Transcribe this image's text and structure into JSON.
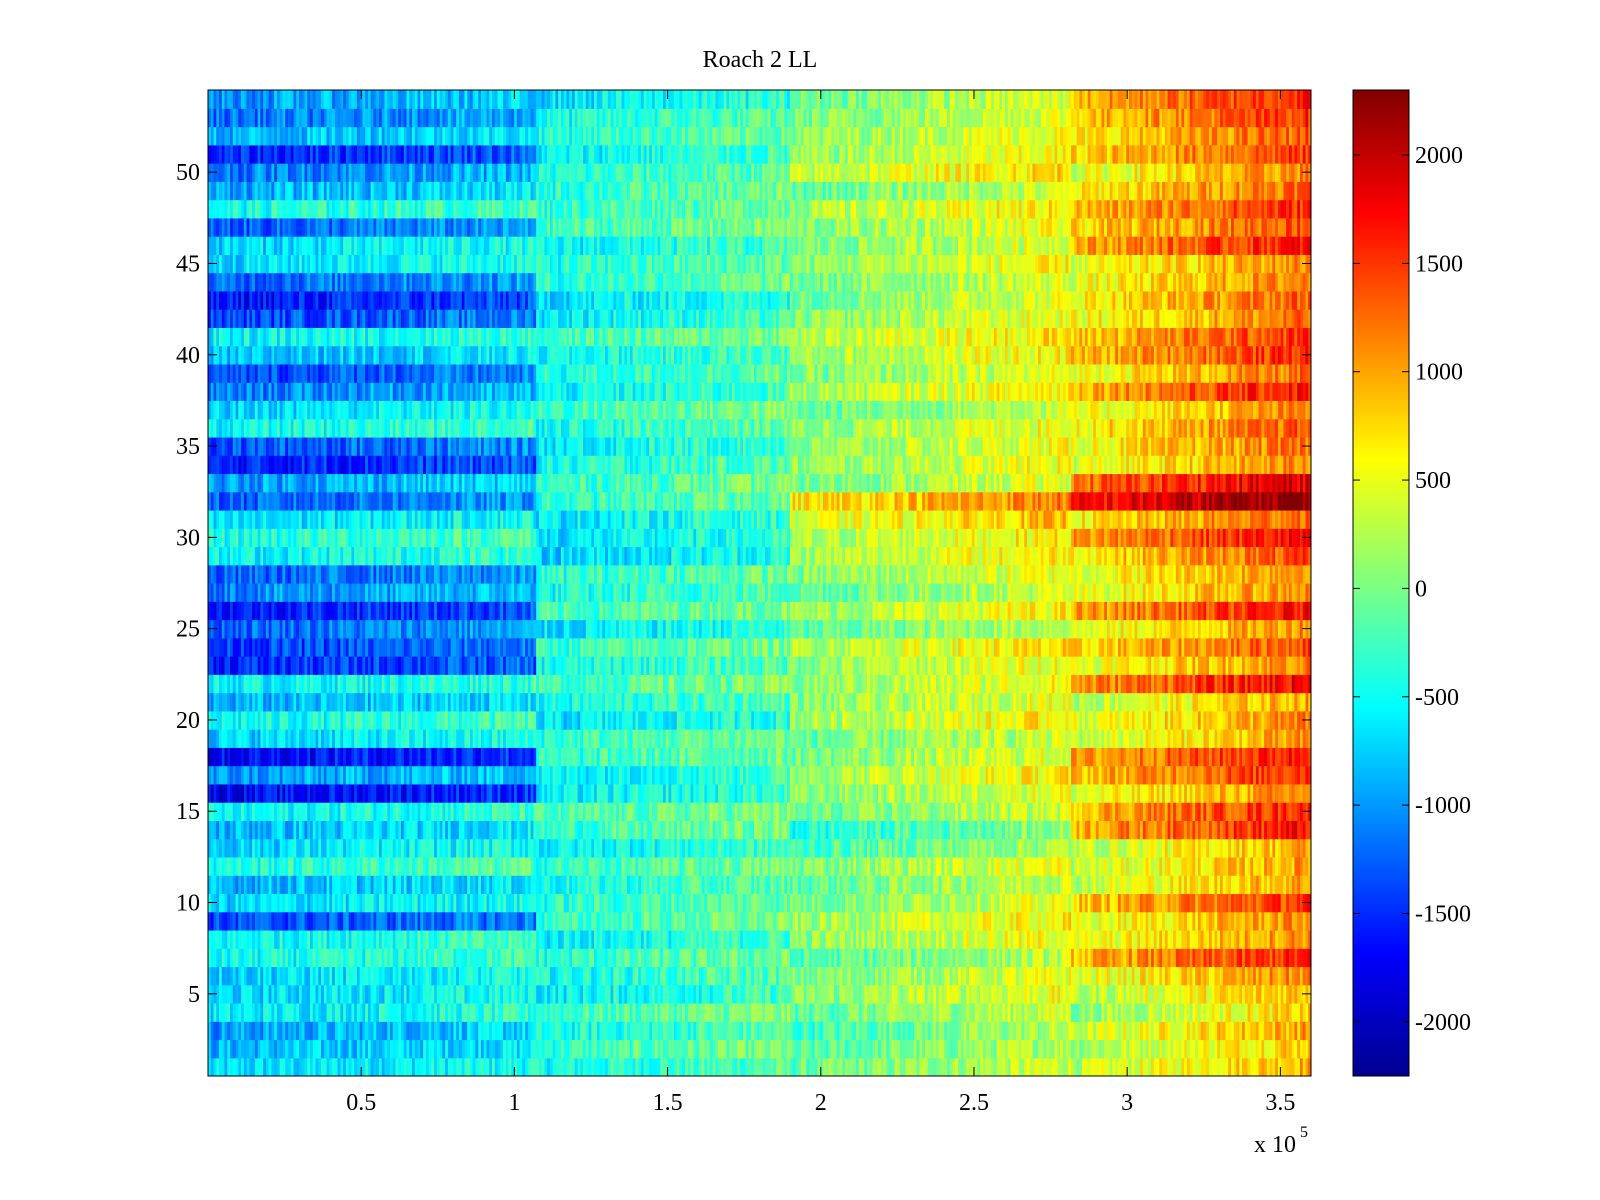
{
  "chart_data": {
    "type": "heatmap",
    "title": "Roach 2 LL",
    "xlabel": "",
    "ylabel": "",
    "x_exponent_label": "x 10",
    "x_exponent_power": "5",
    "xlim": [
      0,
      3.6
    ],
    "ylim": [
      0.5,
      54.5
    ],
    "rows": 54,
    "x_ticks": [
      0.5,
      1,
      1.5,
      2,
      2.5,
      3,
      3.5
    ],
    "x_tick_labels": [
      "0.5",
      "1",
      "1.5",
      "2",
      "2.5",
      "3",
      "3.5"
    ],
    "y_ticks": [
      5,
      10,
      15,
      20,
      25,
      30,
      35,
      40,
      45,
      50
    ],
    "y_tick_labels": [
      "5",
      "10",
      "15",
      "20",
      "25",
      "30",
      "35",
      "40",
      "45",
      "50"
    ],
    "colormap": "jet",
    "clim": [
      -2250,
      2300
    ],
    "colorbar_ticks": [
      2000,
      1500,
      1000,
      500,
      0,
      -500,
      -1000,
      -1500,
      -2000
    ],
    "colorbar_tick_labels": [
      "2000",
      "1500",
      "1000",
      "500",
      "0",
      "-500",
      "-1000",
      "-1500",
      "-2000"
    ],
    "segment_x_bounds": [
      0,
      1.07,
      1.9,
      2.82,
      3.6
    ],
    "segment_ramp": [
      [
        -750,
        -450
      ],
      [
        -500,
        -150
      ],
      [
        -150,
        400
      ],
      [
        400,
        1150
      ]
    ],
    "row_offsets_by_segment": {
      "1": [
        0,
        -150,
        -250,
        100,
        0,
        0,
        200,
        200,
        -650,
        0,
        -150,
        300,
        0,
        -150,
        150,
        -1000,
        -300,
        -950,
        0,
        200,
        -200,
        150,
        -800,
        -700,
        -500,
        -850,
        -350,
        -550,
        150,
        300,
        0,
        -550,
        -250,
        -850,
        -600,
        200,
        0,
        -400,
        -650,
        -150,
        150,
        -650,
        -900,
        -500,
        50,
        0,
        -550,
        250,
        -200,
        -400,
        -800,
        -150,
        -450,
        -300
      ],
      "2": [
        0,
        150,
        0,
        200,
        -100,
        0,
        100,
        -100,
        150,
        100,
        0,
        150,
        -100,
        150,
        200,
        -150,
        -100,
        100,
        150,
        -200,
        0,
        200,
        0,
        150,
        -200,
        200,
        0,
        100,
        -250,
        -200,
        -150,
        100,
        150,
        0,
        -100,
        50,
        200,
        -100,
        50,
        -50,
        200,
        -100,
        -200,
        100,
        50,
        -100,
        200,
        150,
        100,
        50,
        -100,
        100,
        0,
        -200
      ],
      "3": [
        0,
        -100,
        -150,
        0,
        150,
        100,
        -100,
        200,
        250,
        100,
        0,
        150,
        -150,
        -300,
        0,
        150,
        300,
        100,
        0,
        300,
        150,
        200,
        200,
        350,
        -50,
        250,
        0,
        150,
        300,
        300,
        500,
        800,
        100,
        200,
        150,
        200,
        0,
        300,
        100,
        250,
        350,
        150,
        100,
        50,
        200,
        100,
        150,
        300,
        0,
        400,
        200,
        200,
        100,
        50
      ],
      "4": [
        -150,
        -250,
        -100,
        -350,
        -200,
        0,
        450,
        0,
        0,
        400,
        -100,
        -100,
        -150,
        550,
        500,
        0,
        450,
        550,
        -100,
        0,
        -150,
        650,
        50,
        300,
        0,
        550,
        0,
        50,
        250,
        600,
        200,
        1200,
        800,
        0,
        100,
        200,
        0,
        550,
        100,
        450,
        400,
        100,
        200,
        50,
        0,
        550,
        300,
        450,
        200,
        0,
        350,
        200,
        400,
        500
      ]
    }
  }
}
